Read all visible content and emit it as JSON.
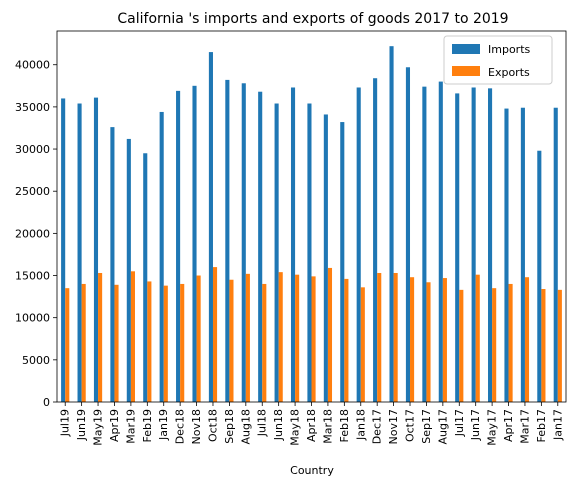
{
  "chart_data": {
    "type": "bar",
    "title": "California 's imports and exports of goods 2017 to 2019",
    "xlabel": "Country",
    "ylabel": "",
    "ylim": [
      0,
      44000
    ],
    "yticks": [
      0,
      5000,
      10000,
      15000,
      20000,
      25000,
      30000,
      35000,
      40000
    ],
    "grid": false,
    "legend_position": "top-right",
    "categories": [
      "Jul19",
      "Jun19",
      "May19",
      "Apr19",
      "Mar19",
      "Feb19",
      "Jan19",
      "Dec18",
      "Nov18",
      "Oct18",
      "Sep18",
      "Aug18",
      "Jul18",
      "Jun18",
      "May18",
      "Apr18",
      "Mar18",
      "Feb18",
      "Jan18",
      "Dec17",
      "Nov17",
      "Oct17",
      "Sep17",
      "Aug17",
      "Jul17",
      "Jun17",
      "May17",
      "Apr17",
      "Mar17",
      "Feb17",
      "Jan17"
    ],
    "series": [
      {
        "name": "Imports",
        "color": "#1f77b4",
        "values": [
          36000,
          35400,
          36100,
          32600,
          31200,
          29500,
          34400,
          36900,
          37500,
          41500,
          38200,
          37800,
          36800,
          35400,
          37300,
          35400,
          34100,
          33200,
          37300,
          38400,
          42200,
          39700,
          37400,
          38000,
          36600,
          37300,
          37200,
          34800,
          34900,
          29800,
          34900
        ]
      },
      {
        "name": "Exports",
        "color": "#ff7f0e",
        "values": [
          13500,
          14000,
          15300,
          13900,
          15500,
          14300,
          13800,
          14000,
          15000,
          16000,
          14500,
          15200,
          14000,
          15400,
          15100,
          14900,
          15900,
          14600,
          13600,
          15300,
          15300,
          14800,
          14200,
          14700,
          13300,
          15100,
          13500,
          14000,
          14800,
          13400,
          13300
        ]
      }
    ]
  }
}
